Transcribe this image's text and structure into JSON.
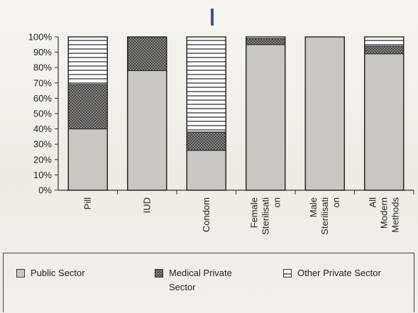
{
  "chart_data": {
    "type": "bar",
    "stacked": true,
    "title": "",
    "xlabel": "",
    "ylabel": "",
    "ylim": [
      0,
      100
    ],
    "y_ticks": [
      "0%",
      "10%",
      "20%",
      "30%",
      "40%",
      "50%",
      "60%",
      "70%",
      "80%",
      "90%",
      "100%"
    ],
    "categories": [
      "Pill",
      "IUD",
      "Condom",
      "Female Sterilisati on",
      "Male Sterilisati on",
      "All Modern Methods"
    ],
    "category_lines": [
      [
        "Pill"
      ],
      [
        "IUD"
      ],
      [
        "Condom"
      ],
      [
        "Female",
        "Sterilisati",
        "on"
      ],
      [
        "Male",
        "Sterilisati",
        "on"
      ],
      [
        "All",
        "Modern",
        "Methods"
      ]
    ],
    "series": [
      {
        "name": "Public Sector",
        "values": [
          40,
          78,
          26,
          95,
          100,
          89
        ],
        "fill": "#c9c7c4",
        "pattern": "solid"
      },
      {
        "name": "Medical Private Sector",
        "values": [
          29,
          22,
          12,
          4,
          0,
          5
        ],
        "fill": "#8a8886",
        "pattern": "crosshatch"
      },
      {
        "name": "Other Private Sector",
        "values": [
          31,
          0,
          62,
          1,
          0,
          6
        ],
        "fill": "#ffffff",
        "pattern": "horizontal-lines"
      }
    ],
    "grid": false,
    "legend_position": "bottom"
  },
  "legend": {
    "items": [
      {
        "label_line1": "Public Sector",
        "label_line2": ""
      },
      {
        "label_line1": "Medical Private",
        "label_line2": "Sector"
      },
      {
        "label_line1": "Other Private Sector",
        "label_line2": ""
      }
    ]
  }
}
